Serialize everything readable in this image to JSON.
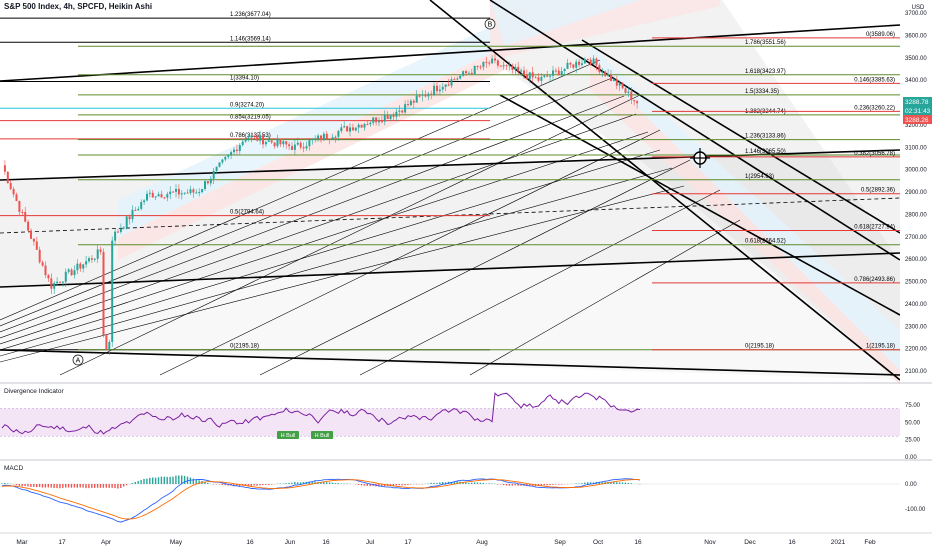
{
  "header": {
    "symbol_title": "S&P 500 Index, 4h, SPCFD, Heikin Ashi",
    "currency": "USD"
  },
  "colors": {
    "bull": "#26a69a",
    "bear": "#ef5350",
    "up_channel_fill": "#e3f2fd",
    "fib_red": "#e53935",
    "fib_green": "#5b8c2a",
    "teal_line": "#26c6da",
    "osc_line": "#7b1fa2",
    "osc_band": "#f3e5f5",
    "macd_line": "#2962ff",
    "signal_line": "#ff6d00",
    "badge_green": "#43a047"
  },
  "price_axis": {
    "ticks": [
      "3700.00",
      "3600.00",
      "3500.00",
      "3400.00",
      "3300.00",
      "3200.00",
      "3100.00",
      "3000.00",
      "2900.00",
      "2800.00",
      "2700.00",
      "2600.00",
      "2500.00",
      "2400.00",
      "2300.00",
      "2200.00",
      "2100.00"
    ],
    "badges": [
      {
        "text": "3288.78",
        "color": "#26a69a"
      },
      {
        "text": "02:31:43",
        "color": "#26a69a"
      },
      {
        "text": "3288.26",
        "color": "#ef5350"
      }
    ]
  },
  "pivots": [
    "A",
    "B"
  ],
  "fib_ext_left": [
    {
      "label": "1.236(3677.04)",
      "price": 3677.04
    },
    {
      "label": "1.146(3569.14)",
      "price": 3569.14
    },
    {
      "label": "1(3394.10)",
      "price": 3394.1
    },
    {
      "label": "0.9(3274.20)",
      "price": 3274.2
    },
    {
      "label": "0.854(3219.05)",
      "price": 3219.05
    },
    {
      "label": "0.786(3137.53)",
      "price": 3137.53
    },
    {
      "label": "0.5(2794.64)",
      "price": 2794.64
    },
    {
      "label": "0(2195.18)",
      "price": 2195.18
    }
  ],
  "fib_green": [
    {
      "label": "1.786(3551.56)",
      "price": 3551.56
    },
    {
      "label": "1.618(3423.97)",
      "price": 3423.97
    },
    {
      "label": "1.5(3334.35)",
      "price": 3334.35
    },
    {
      "label": "1.382(3244.74)",
      "price": 3244.74
    },
    {
      "label": "1.236(3133.86)",
      "price": 3133.86
    },
    {
      "label": "1.146(3065.50)",
      "price": 3065.5
    },
    {
      "label": "1(2954.63)",
      "price": 2954.63
    },
    {
      "label": "0.618(2664.52)",
      "price": 2664.52
    },
    {
      "label": "0(2195.18)",
      "price": 2195.18
    }
  ],
  "fib_red": [
    {
      "label": "0(3589.06)",
      "price": 3589.06
    },
    {
      "label": "0.146(3385.63)",
      "price": 3385.63
    },
    {
      "label": "0.236(3260.22)",
      "price": 3260.22
    },
    {
      "label": "0.382(3056.78)",
      "price": 3056.78
    },
    {
      "label": "0.5(2892.36)",
      "price": 2892.36
    },
    {
      "label": "0.618(2727.94)",
      "price": 2727.94
    },
    {
      "label": "0.786(2493.86)",
      "price": 2493.86
    },
    {
      "label": "1(2195.18)",
      "price": 2195.18
    }
  ],
  "divergence": {
    "title": "Divergence Indicator",
    "ticks": [
      "75.00",
      "50.00",
      "25.00",
      "0.00"
    ],
    "tick_values": [
      75,
      50,
      25,
      0
    ],
    "badges": [
      "H Bull",
      "H Bull"
    ]
  },
  "macd": {
    "title": "MACD",
    "ticks": [
      "0.00",
      "-100.00"
    ],
    "tick_values": [
      0,
      -100
    ]
  },
  "time_axis": [
    "Mar",
    "17",
    "Apr",
    "May",
    "16",
    "Jun",
    "16",
    "Jul",
    "17",
    "Aug",
    "Sep",
    "Oct",
    "16",
    "Nov",
    "Dec",
    "16",
    "2021",
    "Feb"
  ],
  "chart_data": {
    "type": "candlestick",
    "title": "S&P 500 Index, 4h, SPCFD, Heikin Ashi",
    "ylabel": "USD",
    "ylim": [
      2050,
      3750
    ],
    "grid": false,
    "x": [
      "Mar",
      "17",
      "Apr",
      "May",
      "16",
      "Jun",
      "16",
      "Jul",
      "17",
      "Aug",
      "Sep",
      "Oct",
      "16",
      "Nov"
    ],
    "close": [
      3020,
      2480,
      2630,
      2890,
      2900,
      3150,
      3100,
      3180,
      3250,
      3380,
      3480,
      3400,
      3500,
      3300
    ],
    "last_price": 3288.78,
    "pivot_low": {
      "label": "A",
      "price": 2195.18
    },
    "pivot_high": {
      "label": "B",
      "price": 3589.06
    }
  }
}
